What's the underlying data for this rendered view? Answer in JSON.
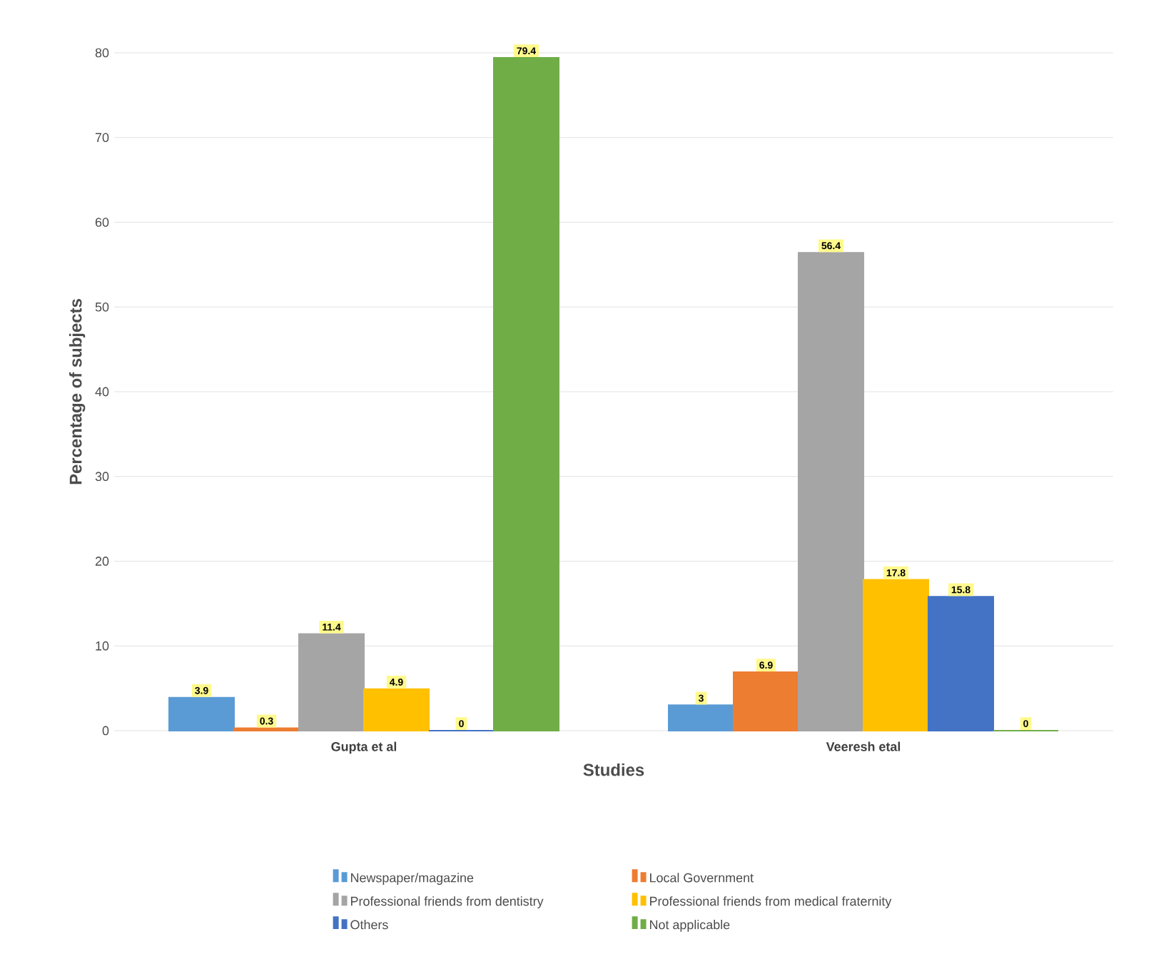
{
  "chart_data": {
    "type": "bar",
    "xlabel": "Studies",
    "ylabel": "Percentage of subjects",
    "categories": [
      "Gupta et al",
      "Veeresh etal"
    ],
    "series": [
      {
        "name": "Newspaper/magazine",
        "color": "#5b9bd5",
        "values": [
          3.9,
          3
        ]
      },
      {
        "name": "Local Government",
        "color": "#ed7d31",
        "values": [
          0.3,
          6.9
        ]
      },
      {
        "name": "Professional friends from dentistry",
        "color": "#a5a5a5",
        "values": [
          11.4,
          56.4
        ]
      },
      {
        "name": "Professional friends from medical fraternity",
        "color": "#ffc000",
        "values": [
          4.9,
          17.8
        ]
      },
      {
        "name": "Others",
        "color": "#4472c4",
        "values": [
          0,
          15.8
        ]
      },
      {
        "name": "Not applicable",
        "color": "#70ad47",
        "values": [
          79.4,
          0
        ]
      }
    ],
    "ylim": [
      0,
      80
    ],
    "yticks": [
      0,
      10,
      20,
      30,
      40,
      50,
      60,
      70,
      80
    ],
    "grid": "y",
    "legend": "bottom",
    "data_labels": true
  }
}
